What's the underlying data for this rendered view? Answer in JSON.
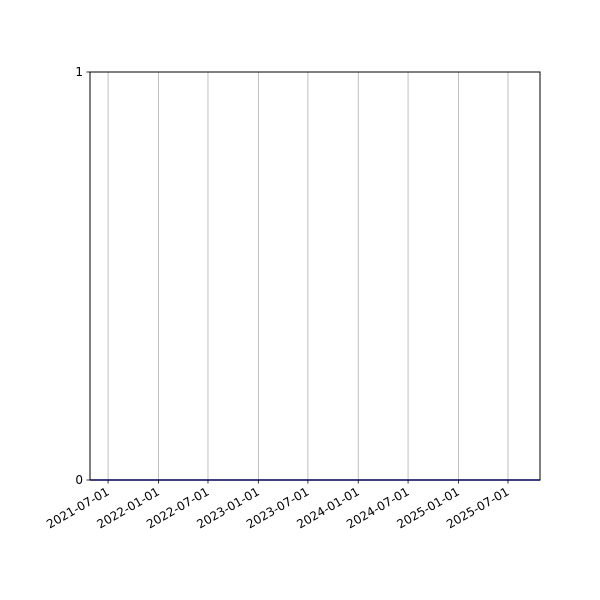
{
  "chart_data": {
    "type": "line",
    "title": "",
    "xlabel": "",
    "ylabel": "",
    "xlim": [
      "2021-04-26",
      "2025-10-26"
    ],
    "ylim": [
      0,
      1
    ],
    "x_ticks": [
      "2021-07-01",
      "2022-01-01",
      "2022-07-01",
      "2023-01-01",
      "2023-07-01",
      "2024-01-01",
      "2024-07-01",
      "2025-01-01",
      "2025-07-01"
    ],
    "y_ticks": [
      "0",
      "1"
    ],
    "grid": "vertical",
    "series": [
      {
        "x": [
          "2021-04-26",
          "2025-10-26"
        ],
        "y": [
          0,
          0
        ],
        "color": "#0000ff"
      }
    ]
  }
}
